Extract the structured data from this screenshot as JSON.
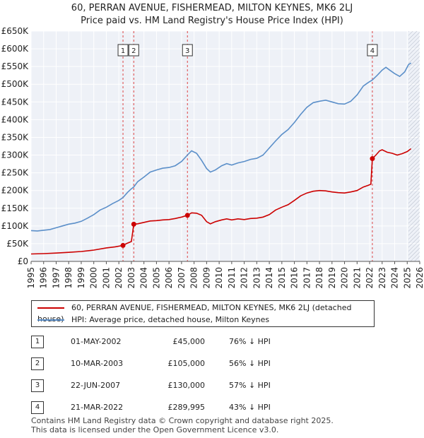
{
  "title_line1": "60, PERRAN AVENUE, FISHERMEAD, MILTON KEYNES, MK6 2LJ",
  "title_line2": "Price paid vs. HM Land Registry's House Price Index (HPI)",
  "chart_data": {
    "type": "line",
    "xlim": [
      1995,
      2026
    ],
    "ylim": [
      0,
      650000
    ],
    "y_ticks": [
      0,
      50000,
      100000,
      150000,
      200000,
      250000,
      300000,
      350000,
      400000,
      450000,
      500000,
      550000,
      600000,
      650000
    ],
    "y_tick_labels": [
      "£0",
      "£50K",
      "£100K",
      "£150K",
      "£200K",
      "£250K",
      "£300K",
      "£350K",
      "£400K",
      "£450K",
      "£500K",
      "£550K",
      "£600K",
      "£650K"
    ],
    "x_ticks": [
      1995,
      1996,
      1997,
      1998,
      1999,
      2000,
      2001,
      2002,
      2003,
      2004,
      2005,
      2006,
      2007,
      2008,
      2009,
      2010,
      2011,
      2012,
      2013,
      2014,
      2015,
      2016,
      2017,
      2018,
      2019,
      2020,
      2021,
      2022,
      2023,
      2024,
      2025,
      2026
    ],
    "x_tick_labels": [
      "1995",
      "1996",
      "1997",
      "1998",
      "1999",
      "2000",
      "2001",
      "2002",
      "2003",
      "2004",
      "2005",
      "2006",
      "2007",
      "2008",
      "2009",
      "2010",
      "2011",
      "2012",
      "2013",
      "2014",
      "2015",
      "2016",
      "2017",
      "2018",
      "2019",
      "2020",
      "2021",
      "2022",
      "2023",
      "2024",
      "2025",
      "2026"
    ],
    "forecast_from": 2025.1,
    "series": [
      {
        "name": "60, PERRAN AVENUE, FISHERMEAD, MILTON KEYNES, MK6 2LJ (detached house)",
        "color": "#cc0000",
        "points": [
          [
            1995.0,
            21000
          ],
          [
            1996.0,
            22000
          ],
          [
            1997.0,
            23500
          ],
          [
            1998.0,
            25500
          ],
          [
            1999.0,
            28000
          ],
          [
            2000.0,
            32000
          ],
          [
            2001.0,
            38000
          ],
          [
            2001.7,
            41000
          ],
          [
            2002.33,
            45000
          ],
          [
            2002.6,
            50000
          ],
          [
            2003.0,
            56000
          ],
          [
            2003.19,
            105000
          ],
          [
            2003.5,
            106000
          ],
          [
            2004.0,
            110000
          ],
          [
            2004.5,
            114000
          ],
          [
            2005.0,
            115000
          ],
          [
            2005.5,
            117000
          ],
          [
            2006.0,
            118000
          ],
          [
            2006.5,
            121000
          ],
          [
            2007.0,
            125000
          ],
          [
            2007.47,
            130000
          ],
          [
            2007.8,
            137000
          ],
          [
            2008.2,
            136000
          ],
          [
            2008.6,
            130000
          ],
          [
            2009.0,
            112000
          ],
          [
            2009.3,
            106000
          ],
          [
            2009.7,
            112000
          ],
          [
            2010.2,
            117000
          ],
          [
            2010.6,
            120000
          ],
          [
            2011.0,
            117000
          ],
          [
            2011.5,
            120000
          ],
          [
            2012.0,
            118000
          ],
          [
            2012.5,
            121000
          ],
          [
            2013.0,
            122000
          ],
          [
            2013.5,
            125000
          ],
          [
            2014.0,
            132000
          ],
          [
            2014.5,
            145000
          ],
          [
            2015.0,
            153000
          ],
          [
            2015.5,
            160000
          ],
          [
            2016.0,
            172000
          ],
          [
            2016.5,
            185000
          ],
          [
            2017.0,
            193000
          ],
          [
            2017.5,
            198000
          ],
          [
            2018.0,
            200000
          ],
          [
            2018.5,
            199000
          ],
          [
            2019.0,
            196000
          ],
          [
            2019.5,
            194000
          ],
          [
            2020.0,
            193000
          ],
          [
            2020.5,
            196000
          ],
          [
            2021.0,
            200000
          ],
          [
            2021.5,
            210000
          ],
          [
            2021.9,
            215000
          ],
          [
            2022.1,
            218000
          ],
          [
            2022.22,
            289995
          ],
          [
            2022.5,
            300000
          ],
          [
            2022.8,
            312000
          ],
          [
            2023.0,
            315000
          ],
          [
            2023.4,
            308000
          ],
          [
            2023.8,
            305000
          ],
          [
            2024.2,
            300000
          ],
          [
            2024.6,
            304000
          ],
          [
            2025.0,
            310000
          ],
          [
            2025.3,
            318000
          ]
        ]
      },
      {
        "name": "HPI: Average price, detached house, Milton Keynes",
        "color": "#5b8fc9",
        "points": [
          [
            1995.0,
            87000
          ],
          [
            1995.5,
            86000
          ],
          [
            1996.0,
            88000
          ],
          [
            1996.5,
            90000
          ],
          [
            1997.0,
            95000
          ],
          [
            1997.5,
            100000
          ],
          [
            1998.0,
            105000
          ],
          [
            1998.5,
            108000
          ],
          [
            1999.0,
            113000
          ],
          [
            1999.5,
            122000
          ],
          [
            2000.0,
            132000
          ],
          [
            2000.5,
            145000
          ],
          [
            2001.0,
            153000
          ],
          [
            2001.5,
            163000
          ],
          [
            2002.0,
            172000
          ],
          [
            2002.33,
            180000
          ],
          [
            2002.7,
            195000
          ],
          [
            2003.0,
            205000
          ],
          [
            2003.19,
            210000
          ],
          [
            2003.5,
            225000
          ],
          [
            2004.0,
            238000
          ],
          [
            2004.5,
            252000
          ],
          [
            2005.0,
            258000
          ],
          [
            2005.5,
            263000
          ],
          [
            2006.0,
            265000
          ],
          [
            2006.5,
            270000
          ],
          [
            2007.0,
            282000
          ],
          [
            2007.47,
            300000
          ],
          [
            2007.8,
            312000
          ],
          [
            2008.2,
            305000
          ],
          [
            2008.6,
            285000
          ],
          [
            2009.0,
            262000
          ],
          [
            2009.3,
            252000
          ],
          [
            2009.7,
            258000
          ],
          [
            2010.2,
            270000
          ],
          [
            2010.6,
            276000
          ],
          [
            2011.0,
            272000
          ],
          [
            2011.5,
            278000
          ],
          [
            2012.0,
            282000
          ],
          [
            2012.5,
            288000
          ],
          [
            2013.0,
            291000
          ],
          [
            2013.5,
            300000
          ],
          [
            2014.0,
            320000
          ],
          [
            2014.5,
            340000
          ],
          [
            2015.0,
            358000
          ],
          [
            2015.5,
            372000
          ],
          [
            2016.0,
            392000
          ],
          [
            2016.5,
            415000
          ],
          [
            2017.0,
            435000
          ],
          [
            2017.5,
            448000
          ],
          [
            2018.0,
            452000
          ],
          [
            2018.5,
            455000
          ],
          [
            2019.0,
            450000
          ],
          [
            2019.5,
            445000
          ],
          [
            2020.0,
            444000
          ],
          [
            2020.5,
            452000
          ],
          [
            2021.0,
            470000
          ],
          [
            2021.5,
            495000
          ],
          [
            2021.9,
            505000
          ],
          [
            2022.22,
            512000
          ],
          [
            2022.6,
            525000
          ],
          [
            2023.0,
            540000
          ],
          [
            2023.3,
            548000
          ],
          [
            2023.6,
            540000
          ],
          [
            2024.0,
            530000
          ],
          [
            2024.4,
            522000
          ],
          [
            2024.8,
            535000
          ],
          [
            2025.1,
            555000
          ],
          [
            2025.3,
            560000
          ]
        ]
      }
    ],
    "transactions": [
      {
        "label": "1",
        "x": 2002.33,
        "price": 45000
      },
      {
        "label": "2",
        "x": 2003.19,
        "price": 105000
      },
      {
        "label": "3",
        "x": 2007.47,
        "price": 130000
      },
      {
        "label": "4",
        "x": 2022.22,
        "price": 289995
      }
    ]
  },
  "legend": {
    "property": "60, PERRAN AVENUE, FISHERMEAD, MILTON KEYNES, MK6 2LJ (detached house)",
    "hpi": "HPI: Average price, detached house, Milton Keynes"
  },
  "table": [
    {
      "num": "1",
      "date": "01-MAY-2002",
      "price": "£45,000",
      "hpi": "76% ↓ HPI"
    },
    {
      "num": "2",
      "date": "10-MAR-2003",
      "price": "£105,000",
      "hpi": "56% ↓ HPI"
    },
    {
      "num": "3",
      "date": "22-JUN-2007",
      "price": "£130,000",
      "hpi": "57% ↓ HPI"
    },
    {
      "num": "4",
      "date": "21-MAR-2022",
      "price": "£289,995",
      "hpi": "43% ↓ HPI"
    }
  ],
  "footer_line1": "Contains HM Land Registry data © Crown copyright and database right 2025.",
  "footer_line2": "This data is licensed under the Open Government Licence v3.0."
}
